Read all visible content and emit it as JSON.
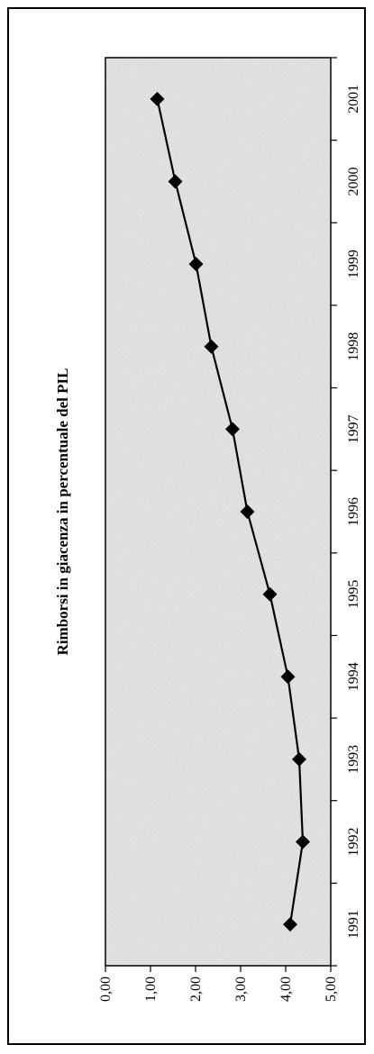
{
  "chart_data": {
    "type": "line",
    "title": "Rimborsi in giacenza in percentuale del PIL",
    "xlabel": "",
    "ylabel": "",
    "categories": [
      "1991",
      "1992",
      "1993",
      "1994",
      "1995",
      "1996",
      "1997",
      "1998",
      "1999",
      "2000",
      "2001"
    ],
    "series": [
      {
        "values": [
          4.1,
          4.38,
          4.3,
          4.05,
          3.65,
          3.15,
          2.82,
          2.35,
          2.01,
          1.55,
          1.15
        ]
      }
    ],
    "ylim": [
      0,
      5
    ],
    "yticks": [
      "0,00",
      "1,00",
      "2,00",
      "3,00",
      "4,00",
      "5,00"
    ],
    "orientation": "rotated-90-ccw",
    "grid": false,
    "legend": "none",
    "colors": {
      "line": "#000000",
      "marker": "#000000",
      "plot_background": "#d9d9d9"
    }
  }
}
